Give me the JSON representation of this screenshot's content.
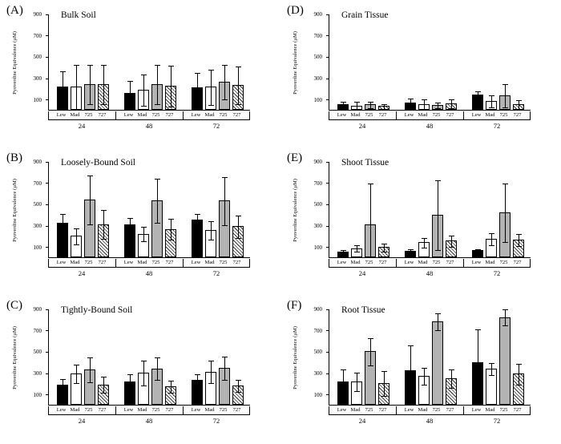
{
  "styles": {
    "axis_color": "#000000",
    "bar_fills": {
      "Lew": "solid-black",
      "Mad": "open-white",
      "725": "solid-gray",
      "727": "diagonal-hatch"
    },
    "bar_gray_hex": "#b3b3b3"
  },
  "chart_data": [
    {
      "type": "bar",
      "panel_label": "(A)",
      "title": "Bulk Soil",
      "ylabel": "Pyoverdine Equivalence (µM)",
      "ylim": [
        0,
        900
      ],
      "yticks": [
        100,
        300,
        500,
        700,
        900
      ],
      "groups": [
        "24",
        "48",
        "72"
      ],
      "categories": [
        "Lew",
        "Mad",
        "725",
        "727"
      ],
      "values": [
        [
          220,
          215,
          240,
          240
        ],
        [
          160,
          185,
          240,
          225
        ],
        [
          210,
          215,
          265,
          235
        ]
      ],
      "errors": [
        [
          150,
          210,
          185,
          190
        ],
        [
          120,
          150,
          185,
          195
        ],
        [
          140,
          170,
          165,
          180
        ]
      ]
    },
    {
      "type": "bar",
      "panel_label": "(B)",
      "title": "Loosely-Bound Soil",
      "ylabel": "Pyoverdine Equivalence (µM)",
      "ylim": [
        0,
        900
      ],
      "yticks": [
        100,
        300,
        500,
        700,
        900
      ],
      "groups": [
        "24",
        "48",
        "72"
      ],
      "categories": [
        "Lew",
        "Mad",
        "725",
        "727"
      ],
      "values": [
        [
          320,
          200,
          540,
          310
        ],
        [
          305,
          220,
          530,
          265
        ],
        [
          350,
          255,
          530,
          290
        ]
      ],
      "errors": [
        [
          90,
          80,
          230,
          140
        ],
        [
          70,
          70,
          210,
          100
        ],
        [
          60,
          90,
          230,
          110
        ]
      ]
    },
    {
      "type": "bar",
      "panel_label": "(C)",
      "title": "Tightly-Bound Soil",
      "ylabel": "Pyoverdine Equivalence (µM)",
      "ylim": [
        0,
        900
      ],
      "yticks": [
        100,
        300,
        500,
        700,
        900
      ],
      "groups": [
        "24",
        "48",
        "72"
      ],
      "categories": [
        "Lew",
        "Mad",
        "725",
        "727"
      ],
      "values": [
        [
          185,
          290,
          330,
          190
        ],
        [
          220,
          300,
          340,
          170
        ],
        [
          230,
          310,
          345,
          180
        ]
      ],
      "errors": [
        [
          60,
          90,
          120,
          80
        ],
        [
          70,
          120,
          110,
          60
        ],
        [
          60,
          110,
          110,
          60
        ]
      ]
    },
    {
      "type": "bar",
      "panel_label": "(D)",
      "title": "Grain Tissue",
      "ylabel": "Pyoverdine Equivalence (µM)",
      "ylim": [
        0,
        900
      ],
      "yticks": [
        100,
        300,
        500,
        700,
        900
      ],
      "groups": [
        "24",
        "48",
        "72"
      ],
      "categories": [
        "Lew",
        "Mad",
        "725",
        "727"
      ],
      "values": [
        [
          55,
          40,
          50,
          35
        ],
        [
          70,
          55,
          45,
          60
        ],
        [
          140,
          85,
          135,
          55
        ]
      ],
      "errors": [
        [
          30,
          40,
          35,
          25
        ],
        [
          40,
          50,
          30,
          45
        ],
        [
          40,
          60,
          110,
          45
        ]
      ]
    },
    {
      "type": "bar",
      "panel_label": "(E)",
      "title": "Shoot Tissue",
      "ylabel": "Pyoverdine Equivalence (µM)",
      "ylim": [
        0,
        900
      ],
      "yticks": [
        100,
        300,
        500,
        700,
        900
      ],
      "groups": [
        "24",
        "48",
        "72"
      ],
      "categories": [
        "Lew",
        "Mad",
        "725",
        "727"
      ],
      "values": [
        [
          55,
          85,
          310,
          95
        ],
        [
          60,
          140,
          400,
          155
        ],
        [
          65,
          175,
          420,
          165
        ]
      ],
      "errors": [
        [
          20,
          35,
          390,
          40
        ],
        [
          20,
          50,
          330,
          55
        ],
        [
          20,
          60,
          280,
          60
        ]
      ]
    },
    {
      "type": "bar",
      "panel_label": "(F)",
      "title": "Root Tissue",
      "ylabel": "Pyoverdine Equivalence (µM)",
      "ylim": [
        0,
        900
      ],
      "yticks": [
        100,
        300,
        500,
        700,
        900
      ],
      "groups": [
        "24",
        "48",
        "72"
      ],
      "categories": [
        "Lew",
        "Mad",
        "725",
        "727"
      ],
      "values": [
        [
          220,
          215,
          500,
          200
        ],
        [
          320,
          270,
          780,
          250
        ],
        [
          400,
          340,
          820,
          290
        ]
      ],
      "errors": [
        [
          120,
          90,
          130,
          120
        ],
        [
          240,
          80,
          80,
          90
        ],
        [
          310,
          60,
          80,
          100
        ]
      ]
    }
  ]
}
